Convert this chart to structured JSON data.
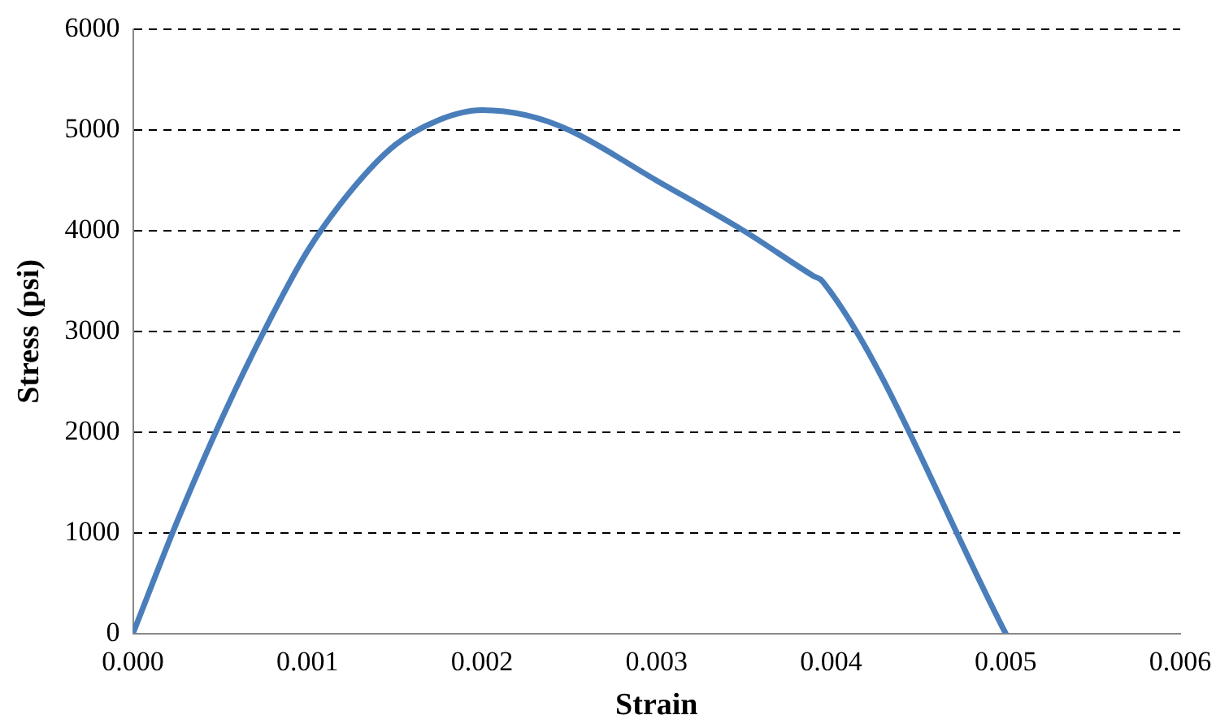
{
  "chart_data": {
    "type": "line",
    "xlabel": "Strain",
    "ylabel": "Stress (psi)",
    "x": [
      0,
      0.00025,
      0.0005,
      0.00075,
      0.001,
      0.00125,
      0.0015,
      0.00175,
      0.002,
      0.00225,
      0.0025,
      0.003,
      0.0035,
      0.0039,
      0.00395,
      0.005
    ],
    "series": [
      {
        "color": "#4a7ebb",
        "values": [
          0,
          1100,
          2100,
          3000,
          3800,
          4400,
          4850,
          5100,
          5200,
          5150,
          5000,
          4500,
          4000,
          3550,
          3500,
          0
        ]
      }
    ],
    "xlim": [
      0,
      0.006
    ],
    "xticks": [
      {
        "value": 0,
        "label": "0.000"
      },
      {
        "value": 0.001,
        "label": "0.001"
      },
      {
        "value": 0.002,
        "label": "0.002"
      },
      {
        "value": 0.003,
        "label": "0.003"
      },
      {
        "value": 0.004,
        "label": "0.004"
      },
      {
        "value": 0.005,
        "label": "0.005"
      },
      {
        "value": 0.006,
        "label": "0.006"
      }
    ],
    "ylim": [
      0,
      6000
    ],
    "yticks": [
      0,
      1000,
      2000,
      3000,
      4000,
      5000,
      6000
    ],
    "grid": "y",
    "legend": false,
    "marker": "none",
    "line_style": "solid"
  }
}
